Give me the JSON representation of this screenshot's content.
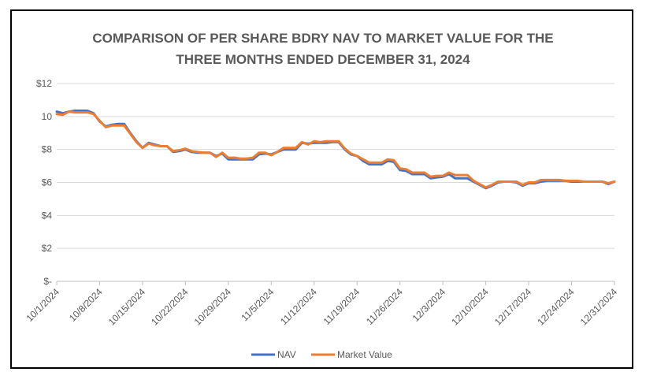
{
  "chart_data": {
    "type": "line",
    "title_lines": [
      "COMPARISON OF PER SHARE BDRY NAV TO MARKET VALUE FOR THE",
      "THREE MONTHS ENDED DECEMBER 31, 2024"
    ],
    "xlabel": "",
    "ylabel": "",
    "ylim": [
      0,
      12
    ],
    "y_ticks": [
      0,
      2,
      4,
      6,
      8,
      10,
      12
    ],
    "y_tick_labels": [
      "$-",
      "$2",
      "$4",
      "$6",
      "$8",
      "10",
      "$12"
    ],
    "x_range": [
      0,
      91
    ],
    "x_ticks": [
      0,
      7,
      14,
      21,
      28,
      35,
      42,
      49,
      56,
      63,
      70,
      77,
      84,
      91
    ],
    "x_tick_labels": [
      "10/1/2024",
      "10/8/2024",
      "10/15/2024",
      "10/22/2024",
      "10/29/2024",
      "11/5/2024",
      "11/12/2024",
      "11/19/2024",
      "11/26/2024",
      "12/3/2024",
      "12/10/2024",
      "12/17/2024",
      "12/24/2024",
      "12/31/2024"
    ],
    "grid": true,
    "legend_position": "bottom",
    "series": [
      {
        "name": "NAV",
        "color": "#4472C4",
        "x": [
          0,
          1,
          2,
          3,
          4,
          5,
          6,
          7,
          8,
          9,
          10,
          11,
          12,
          13,
          14,
          15,
          16,
          17,
          18,
          19,
          20,
          21,
          22,
          23,
          24,
          25,
          26,
          27,
          28,
          29,
          30,
          31,
          32,
          33,
          34,
          35,
          36,
          37,
          38,
          39,
          40,
          41,
          42,
          43,
          44,
          45,
          46,
          47,
          48,
          49,
          50,
          51,
          52,
          53,
          54,
          55,
          56,
          57,
          58,
          59,
          60,
          61,
          62,
          63,
          64,
          65,
          66,
          67,
          68,
          69,
          70,
          71,
          72,
          73,
          74,
          75,
          76,
          77,
          78,
          79,
          80,
          81,
          82,
          83,
          84,
          85,
          86,
          87,
          88,
          89,
          90,
          91
        ],
        "values": [
          10.3,
          10.2,
          10.3,
          10.35,
          10.35,
          10.35,
          10.2,
          9.7,
          9.4,
          9.5,
          9.55,
          9.55,
          9.0,
          8.5,
          8.1,
          8.4,
          8.3,
          8.2,
          8.2,
          7.85,
          7.9,
          8.0,
          7.85,
          7.8,
          7.8,
          7.8,
          7.6,
          7.75,
          7.4,
          7.4,
          7.4,
          7.4,
          7.4,
          7.7,
          7.75,
          7.7,
          7.85,
          8.0,
          8.0,
          8.0,
          8.4,
          8.35,
          8.4,
          8.4,
          8.4,
          8.45,
          8.45,
          8.0,
          7.7,
          7.6,
          7.3,
          7.1,
          7.1,
          7.1,
          7.3,
          7.25,
          6.75,
          6.7,
          6.5,
          6.5,
          6.5,
          6.25,
          6.3,
          6.35,
          6.5,
          6.25,
          6.25,
          6.25,
          6.05,
          5.85,
          5.65,
          5.8,
          6.0,
          6.05,
          6.05,
          6.0,
          5.8,
          5.95,
          5.95,
          6.05,
          6.1,
          6.1,
          6.1,
          6.1,
          6.05,
          6.05,
          6.05,
          6.05,
          6.05,
          6.05,
          5.9,
          6.05
        ]
      },
      {
        "name": "Market Value",
        "color": "#ED7D31",
        "x": [
          0,
          1,
          2,
          3,
          4,
          5,
          6,
          7,
          8,
          9,
          10,
          11,
          12,
          13,
          14,
          15,
          16,
          17,
          18,
          19,
          20,
          21,
          22,
          23,
          24,
          25,
          26,
          27,
          28,
          29,
          30,
          31,
          32,
          33,
          34,
          35,
          36,
          37,
          38,
          39,
          40,
          41,
          42,
          43,
          44,
          45,
          46,
          47,
          48,
          49,
          50,
          51,
          52,
          53,
          54,
          55,
          56,
          57,
          58,
          59,
          60,
          61,
          62,
          63,
          64,
          65,
          66,
          67,
          68,
          69,
          70,
          71,
          72,
          73,
          74,
          75,
          76,
          77,
          78,
          79,
          80,
          81,
          82,
          83,
          84,
          85,
          86,
          87,
          88,
          89,
          90,
          91
        ],
        "values": [
          10.15,
          10.1,
          10.3,
          10.25,
          10.25,
          10.25,
          10.15,
          9.75,
          9.35,
          9.45,
          9.45,
          9.45,
          8.95,
          8.45,
          8.1,
          8.35,
          8.25,
          8.2,
          8.2,
          7.9,
          7.95,
          8.05,
          7.9,
          7.85,
          7.8,
          7.8,
          7.55,
          7.8,
          7.5,
          7.5,
          7.45,
          7.45,
          7.5,
          7.8,
          7.8,
          7.65,
          7.85,
          8.1,
          8.1,
          8.1,
          8.45,
          8.3,
          8.5,
          8.45,
          8.5,
          8.5,
          8.5,
          8.05,
          7.75,
          7.6,
          7.4,
          7.2,
          7.2,
          7.2,
          7.4,
          7.35,
          6.85,
          6.8,
          6.6,
          6.6,
          6.6,
          6.35,
          6.4,
          6.4,
          6.6,
          6.45,
          6.45,
          6.45,
          6.1,
          5.9,
          5.7,
          5.85,
          6.05,
          6.05,
          6.05,
          6.05,
          5.85,
          6.0,
          6.0,
          6.15,
          6.15,
          6.15,
          6.15,
          6.1,
          6.1,
          6.1,
          6.05,
          6.05,
          6.05,
          6.05,
          5.95,
          6.05
        ]
      }
    ]
  }
}
